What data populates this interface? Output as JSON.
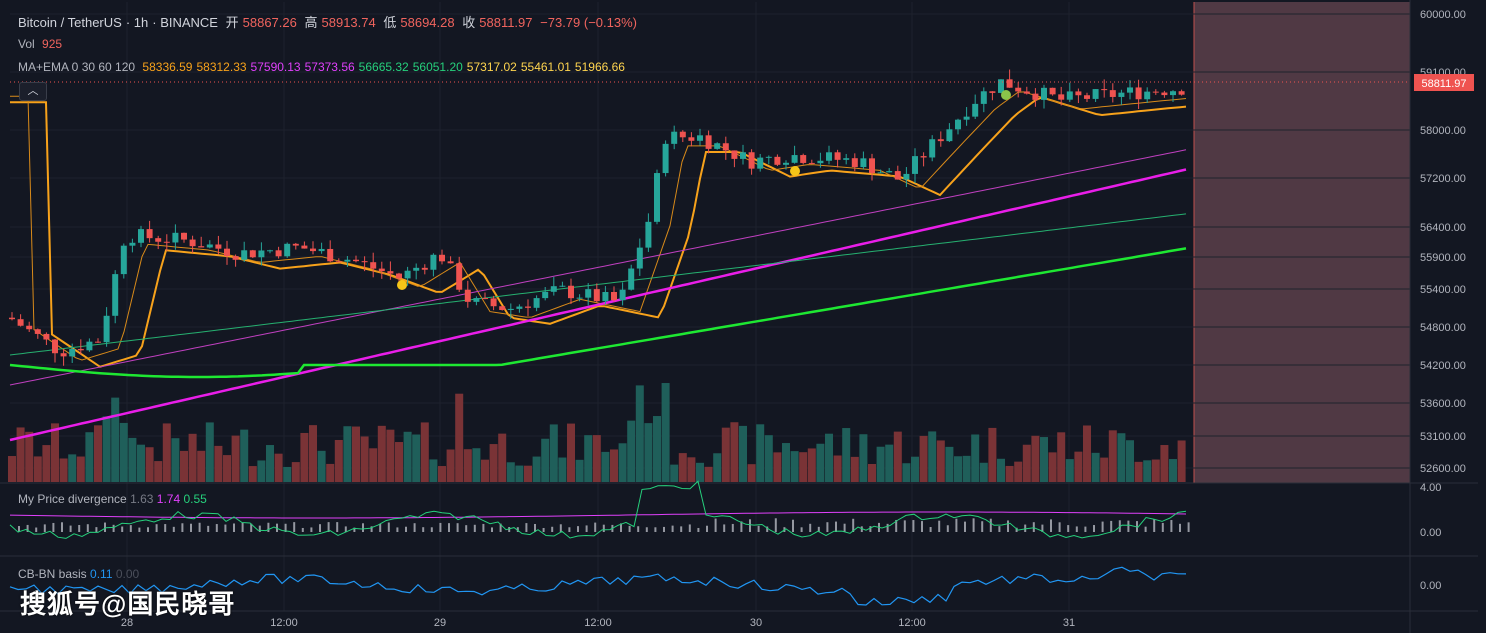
{
  "header": {
    "symbol": "Bitcoin / TetherUS",
    "interval": "1h",
    "exchange": "BINANCE",
    "open_label": "开",
    "open": "58867.26",
    "high_label": "高",
    "high": "58913.74",
    "low_label": "低",
    "low": "58694.28",
    "close_label": "收",
    "close": "58811.97",
    "change": "−73.79 (−0.13%)"
  },
  "volume_legend": {
    "label": "Vol",
    "value": "925"
  },
  "ma_legend": {
    "label": "MA+EMA 0 30 60 120",
    "values": [
      {
        "text": "58336.59",
        "color": "#f7a21b"
      },
      {
        "text": "58312.33",
        "color": "#f7a21b"
      },
      {
        "text": "57590.13",
        "color": "#e040fb"
      },
      {
        "text": "57373.56",
        "color": "#e040fb"
      },
      {
        "text": "56665.32",
        "color": "#26d07c"
      },
      {
        "text": "56051.20",
        "color": "#26d07c"
      },
      {
        "text": "57317.02",
        "color": "#ffd54f"
      },
      {
        "text": "55461.01",
        "color": "#ffd54f"
      },
      {
        "text": "51966.66",
        "color": "#ffd54f"
      }
    ]
  },
  "pane_price_divergence": {
    "label": "My Price divergence",
    "v1": "1.63",
    "v2": "1.74",
    "v3": "0.55",
    "scale_top": "4.00",
    "scale_zero": "0.00"
  },
  "pane_basis": {
    "label": "CB-BN basis",
    "v1": "0.11",
    "v2": "0.00",
    "scale_zero": "0.00"
  },
  "price_axis": {
    "ticks": [
      "60000.00",
      "59100.00",
      "58000.00",
      "57200.00",
      "56400.00",
      "55900.00",
      "55400.00",
      "54800.00",
      "54200.00",
      "53600.00",
      "53100.00",
      "52600.00"
    ],
    "last_price": "58811.97"
  },
  "time_axis": {
    "labels": [
      "28",
      "12:00",
      "29",
      "12:00",
      "30",
      "12:00",
      "31"
    ]
  },
  "watermark": "搜狐号@国民晓哥",
  "colors": {
    "background": "#131722",
    "up": "#26a69a",
    "down": "#ef5350",
    "ema_orange": "#f7a21b",
    "ema_magenta": "#e91ee9",
    "ma_green": "#1ee832",
    "highlight_zone": "#5c3f4a"
  }
}
